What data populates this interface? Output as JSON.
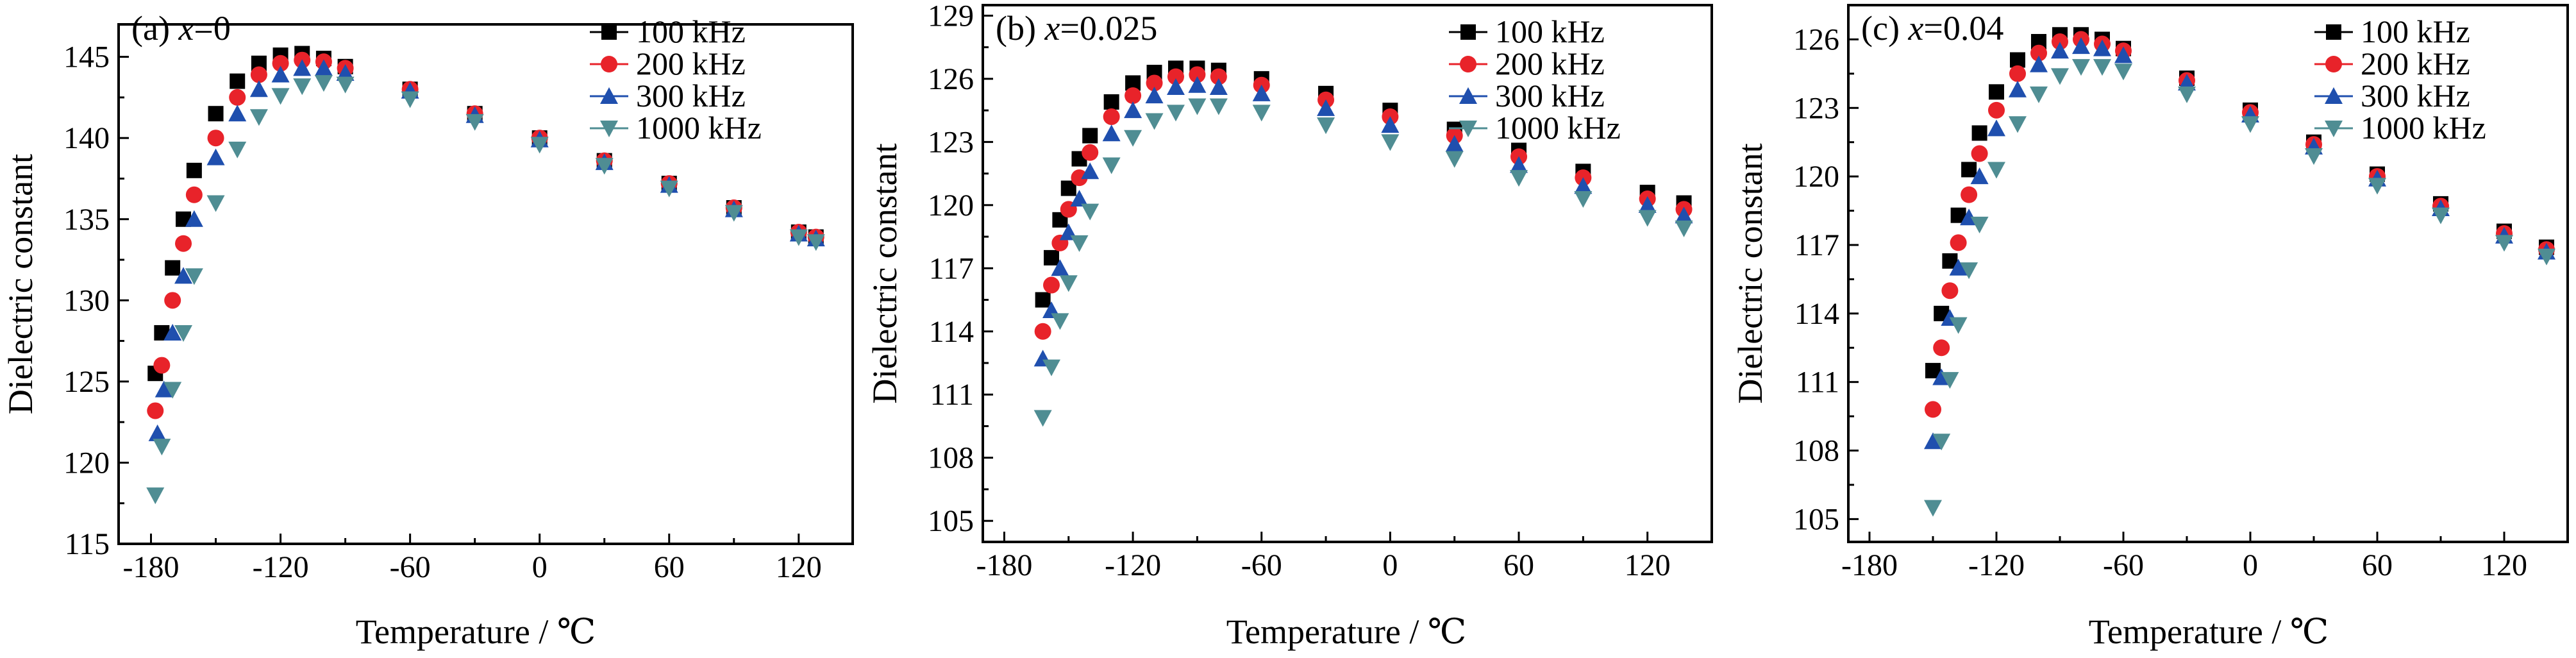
{
  "figure": {
    "marker_colors": {
      "100 kHz": "#000000",
      "200 kHz": "#e8232a",
      "300 kHz": "#1f4fae",
      "1000 kHz": "#4f8d93"
    }
  },
  "chart_data": [
    {
      "type": "scatter",
      "panel_label": "(a) ",
      "panel_var": "x",
      "panel_value": "=0",
      "xlabel": "Temperature / ℃",
      "ylabel": "Dielectric constant",
      "xlim": [
        -195,
        145
      ],
      "ylim": [
        115,
        147
      ],
      "xticks": [
        -180,
        -120,
        -60,
        0,
        60,
        120
      ],
      "yticks": [
        115,
        120,
        125,
        130,
        135,
        140,
        145
      ],
      "legend_position": "top-right",
      "series": [
        {
          "name": "100 kHz",
          "marker": "square",
          "color": "#000000",
          "x": [
            -178,
            -175,
            -170,
            -165,
            -160,
            -150,
            -140,
            -130,
            -120,
            -110,
            -100,
            -90,
            -60,
            -30,
            0,
            30,
            60,
            90,
            120,
            128
          ],
          "y": [
            125.5,
            128,
            132,
            135,
            138,
            141.5,
            143.5,
            144.6,
            145.1,
            145.2,
            144.9,
            144.4,
            143,
            141.5,
            140,
            138.6,
            137.2,
            135.7,
            134.2,
            133.9
          ]
        },
        {
          "name": "200 kHz",
          "marker": "circle",
          "color": "#e8232a",
          "x": [
            -178,
            -175,
            -170,
            -165,
            -160,
            -150,
            -140,
            -130,
            -120,
            -110,
            -100,
            -90,
            -60,
            -30,
            0,
            30,
            60,
            90,
            120,
            128
          ],
          "y": [
            123.2,
            126,
            130,
            133.5,
            136.5,
            140,
            142.5,
            143.9,
            144.6,
            144.8,
            144.7,
            144.3,
            143,
            141.5,
            140,
            138.6,
            137.2,
            135.7,
            134.2,
            133.9
          ]
        },
        {
          "name": "300 kHz",
          "marker": "triangle-up",
          "color": "#1f4fae",
          "x": [
            -177,
            -174,
            -170,
            -165,
            -160,
            -150,
            -140,
            -130,
            -120,
            -110,
            -100,
            -90,
            -60,
            -30,
            0,
            30,
            60,
            90,
            120,
            128
          ],
          "y": [
            121.8,
            124.5,
            128,
            131.5,
            135,
            138.8,
            141.5,
            143,
            143.9,
            144.3,
            144.3,
            144,
            142.9,
            141.4,
            139.9,
            138.5,
            137.1,
            135.6,
            134.1,
            133.8
          ]
        },
        {
          "name": "1000 kHz",
          "marker": "triangle-down",
          "color": "#4f8d93",
          "x": [
            -178,
            -175,
            -170,
            -165,
            -160,
            -150,
            -140,
            -130,
            -120,
            -110,
            -100,
            -90,
            -60,
            -30,
            0,
            30,
            60,
            90,
            120,
            128
          ],
          "y": [
            118,
            121,
            124.5,
            128,
            131.5,
            136,
            139.3,
            141.3,
            142.6,
            143.2,
            143.4,
            143.3,
            142.4,
            141,
            139.6,
            138.3,
            136.9,
            135.4,
            133.9,
            133.6
          ]
        }
      ]
    },
    {
      "type": "scatter",
      "panel_label": "(b) ",
      "panel_var": "x",
      "panel_value": "=0.025",
      "xlabel": "Temperature / ℃",
      "ylabel": "Dielectric constant",
      "xlim": [
        -190,
        150
      ],
      "ylim": [
        104,
        129.5
      ],
      "xticks": [
        -180,
        -120,
        -60,
        0,
        60,
        120
      ],
      "yticks": [
        105,
        108,
        111,
        114,
        117,
        120,
        123,
        126,
        129
      ],
      "legend_position": "top-right",
      "series": [
        {
          "name": "100 kHz",
          "marker": "square",
          "color": "#000000",
          "x": [
            -162,
            -158,
            -154,
            -150,
            -145,
            -140,
            -130,
            -120,
            -110,
            -100,
            -90,
            -80,
            -60,
            -30,
            0,
            30,
            60,
            90,
            120,
            137
          ],
          "y": [
            115.5,
            117.5,
            119.3,
            120.8,
            122.2,
            123.3,
            124.9,
            125.8,
            126.3,
            126.5,
            126.5,
            126.4,
            126,
            125.3,
            124.5,
            123.6,
            122.6,
            121.6,
            120.6,
            120.1
          ]
        },
        {
          "name": "200 kHz",
          "marker": "circle",
          "color": "#e8232a",
          "x": [
            -162,
            -158,
            -154,
            -150,
            -145,
            -140,
            -130,
            -120,
            -110,
            -100,
            -90,
            -80,
            -60,
            -30,
            0,
            30,
            60,
            90,
            120,
            137
          ],
          "y": [
            114,
            116.2,
            118.2,
            119.8,
            121.3,
            122.5,
            124.2,
            125.2,
            125.8,
            126.1,
            126.2,
            126.1,
            125.7,
            125,
            124.2,
            123.3,
            122.3,
            121.3,
            120.3,
            119.8
          ]
        },
        {
          "name": "300 kHz",
          "marker": "triangle-up",
          "color": "#1f4fae",
          "x": [
            -162,
            -158,
            -154,
            -150,
            -145,
            -140,
            -130,
            -120,
            -110,
            -100,
            -90,
            -80,
            -60,
            -30,
            0,
            30,
            60,
            90,
            120,
            137
          ],
          "y": [
            112.7,
            115,
            117,
            118.7,
            120.3,
            121.6,
            123.4,
            124.5,
            125.2,
            125.6,
            125.7,
            125.6,
            125.3,
            124.6,
            123.8,
            122.9,
            121.9,
            120.9,
            120,
            119.5
          ]
        },
        {
          "name": "1000 kHz",
          "marker": "triangle-down",
          "color": "#4f8d93",
          "x": [
            -162,
            -158,
            -154,
            -150,
            -145,
            -140,
            -130,
            -120,
            -110,
            -100,
            -90,
            -80,
            -60,
            -30,
            0,
            30,
            60,
            90,
            120,
            137
          ],
          "y": [
            109.9,
            112.3,
            114.5,
            116.3,
            118.2,
            119.7,
            121.9,
            123.2,
            124,
            124.4,
            124.7,
            124.7,
            124.4,
            123.8,
            123,
            122.2,
            121.3,
            120.3,
            119.4,
            118.9
          ]
        }
      ]
    },
    {
      "type": "scatter",
      "panel_label": "(c) ",
      "panel_var": "x",
      "panel_value": "=0.04",
      "xlabel": "Temperature / ℃",
      "ylabel": "Dielectric constant",
      "xlim": [
        -190,
        150
      ],
      "ylim": [
        104,
        127.5
      ],
      "xticks": [
        -180,
        -120,
        -60,
        0,
        60,
        120
      ],
      "yticks": [
        105,
        108,
        111,
        114,
        117,
        120,
        123,
        126
      ],
      "legend_position": "top-right",
      "series": [
        {
          "name": "100 kHz",
          "marker": "square",
          "color": "#000000",
          "x": [
            -150,
            -146,
            -142,
            -138,
            -133,
            -128,
            -120,
            -110,
            -100,
            -90,
            -80,
            -70,
            -60,
            -30,
            0,
            30,
            60,
            90,
            120,
            140
          ],
          "y": [
            111.5,
            114,
            116.3,
            118.3,
            120.3,
            121.9,
            123.7,
            125.1,
            125.9,
            126.2,
            126.2,
            126,
            125.6,
            124.3,
            122.9,
            121.5,
            120.1,
            118.8,
            117.6,
            116.9
          ]
        },
        {
          "name": "200 kHz",
          "marker": "circle",
          "color": "#e8232a",
          "x": [
            -150,
            -146,
            -142,
            -138,
            -133,
            -128,
            -120,
            -110,
            -100,
            -90,
            -80,
            -70,
            -60,
            -30,
            0,
            30,
            60,
            90,
            120,
            140
          ],
          "y": [
            109.8,
            112.5,
            115,
            117.1,
            119.2,
            121,
            122.9,
            124.5,
            125.4,
            125.9,
            126,
            125.8,
            125.5,
            124.2,
            122.8,
            121.4,
            120,
            118.7,
            117.5,
            116.8
          ]
        },
        {
          "name": "300 kHz",
          "marker": "triangle-up",
          "color": "#1f4fae",
          "x": [
            -150,
            -146,
            -142,
            -138,
            -133,
            -128,
            -120,
            -110,
            -100,
            -90,
            -80,
            -70,
            -60,
            -30,
            0,
            30,
            60,
            90,
            120,
            140
          ],
          "y": [
            108.4,
            111.2,
            113.8,
            116,
            118.2,
            120,
            122.1,
            123.8,
            124.9,
            125.5,
            125.7,
            125.6,
            125.3,
            124.1,
            122.7,
            121.3,
            119.9,
            118.6,
            117.4,
            116.7
          ]
        },
        {
          "name": "1000 kHz",
          "marker": "triangle-down",
          "color": "#4f8d93",
          "x": [
            -150,
            -146,
            -142,
            -138,
            -133,
            -128,
            -120,
            -110,
            -100,
            -90,
            -80,
            -70,
            -60,
            -30,
            0,
            30,
            60,
            90,
            120,
            140
          ],
          "y": [
            105.5,
            108.4,
            111.1,
            113.5,
            115.9,
            117.9,
            120.3,
            122.3,
            123.6,
            124.4,
            124.8,
            124.8,
            124.6,
            123.6,
            122.3,
            120.9,
            119.6,
            118.3,
            117.1,
            116.5
          ]
        }
      ]
    }
  ]
}
